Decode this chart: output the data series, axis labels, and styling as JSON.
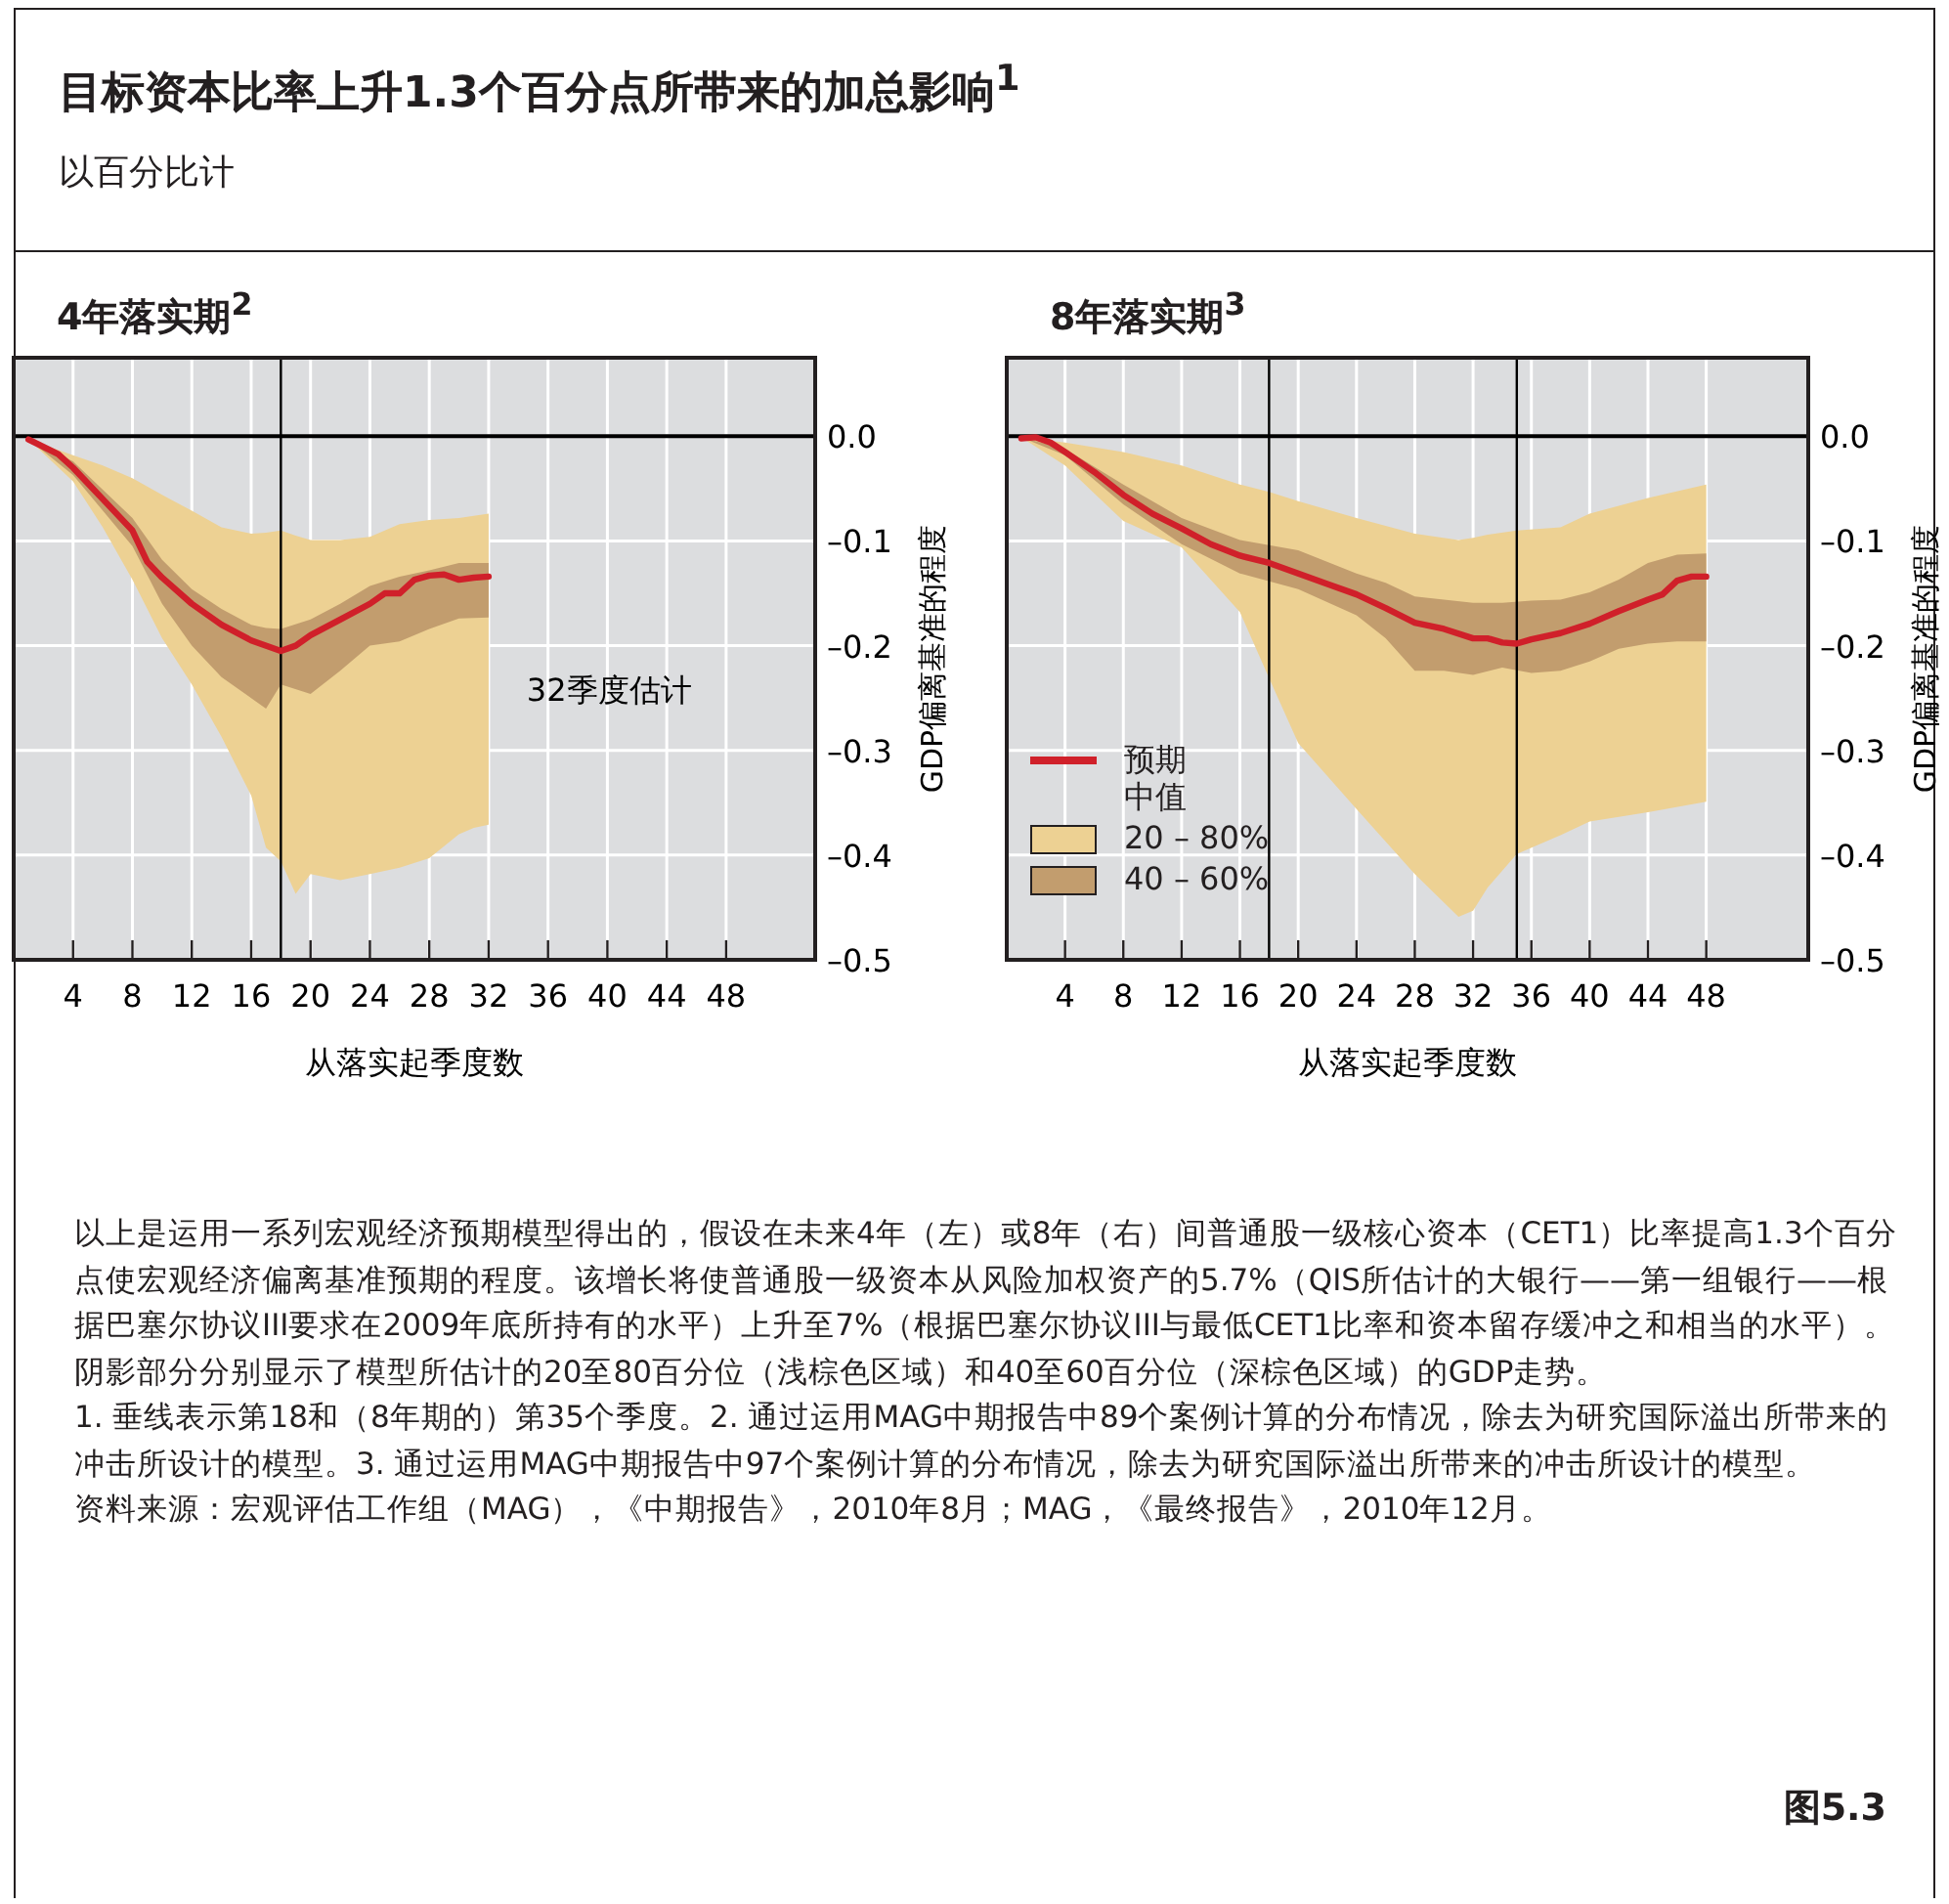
{
  "chart_data": [
    {
      "type": "other",
      "title": "目标资本比率上升1.3个百分点所带来的加总影响$^{1}$",
      "subtitle": "以百分比计",
      "annotations": [
        "以上是运用一系列宏观经济预期模型得出的，假设在未来4年（左）或8年（右）间普通股一级核心资本（CET1）比率提高1.3个百分点使宏观经济偏离基准预期的程度。该增长将使普通股一级资本从风险加权资产的5.7%（QIS所估计的大银行——第一组银行——根据巴塞尔协议III要求在2009年底所持有的水平）上升至7%（根据巴塞尔协议III与最低CET1比率和资本留存缓冲之和相当的水平）。阴影部分分别显示了模型所估计的20至80百分位（浅棕色区域）和40至60百分位（深棕色区域）的GDP走势。",
        "1. 垂线表示第18和（8年期的）第35个季度。2. 通过运用MAG中期报告中89个案例计算的分布情况，除去为研究国际溢出所带来的冲击所设计的模型。3. 通过运用MAG中期报告中97个案例计算的分布情况，除去为研究国际溢出所带来的冲击所设计的模型。",
        "资料来源：宏观评估工作组（MAG），《中期报告》，2010年8月；MAG，《最终报告》，2010年12月。",
        "图5.3"
      ]
    },
    {
      "type": "line",
      "title": "4年落实期$^{2}$",
      "xlabel": "从落实起季度数",
      "ylabel": "GDP偏离基准的程度",
      "xlim": [
        0,
        54
      ],
      "ylim": [
        -0.5,
        0.075
      ],
      "xticks": [
        4,
        8,
        12,
        16,
        20,
        24,
        28,
        32,
        36,
        40,
        44,
        48
      ],
      "yticks": [
        {
          "value": 0,
          "label": "0.0"
        },
        {
          "value": -0.1,
          "label": "–0.1"
        },
        {
          "value": -0.2,
          "label": "–0.2"
        },
        {
          "value": -0.3,
          "label": "–0.3"
        },
        {
          "value": -0.4,
          "label": "–0.4"
        },
        {
          "value": -0.5,
          "label": "–0.5"
        }
      ],
      "grid": true,
      "legend": false,
      "ref_lines": [
        {
          "axis": "y",
          "value": 0,
          "color": "#000000"
        },
        {
          "axis": "x",
          "value": 18,
          "color": "#000000"
        }
      ],
      "annotations": [
        "32季度估计"
      ],
      "series": [
        {
          "type": "line",
          "color": "#edd193",
          "x": [
            1,
            4,
            6,
            8,
            10,
            12,
            14,
            16,
            17,
            18,
            19,
            20,
            22,
            24,
            26,
            28,
            30,
            31,
            32
          ],
          "values": [
            null,
            null,
            null,
            null,
            null,
            null,
            null,
            null,
            null,
            null,
            null,
            null,
            null,
            null,
            null,
            null,
            null,
            null,
            null
          ],
          "upper": [
            -0.003,
            -0.018,
            -0.028,
            -0.04,
            -0.056,
            -0.071,
            -0.087,
            -0.093,
            -0.092,
            -0.09,
            -0.095,
            -0.099,
            -0.099,
            -0.096,
            -0.084,
            -0.08,
            -0.078,
            -0.076,
            -0.074
          ],
          "lower": [
            -0.003,
            -0.043,
            -0.087,
            -0.137,
            -0.193,
            -0.237,
            -0.287,
            -0.343,
            -0.393,
            -0.406,
            -0.437,
            -0.418,
            -0.424,
            -0.418,
            -0.412,
            -0.403,
            -0.38,
            -0.374,
            -0.371
          ]
        },
        {
          "type": "line",
          "color": "#c29d6e",
          "x": [
            1,
            4,
            8,
            10,
            12,
            14,
            16,
            17,
            18,
            20,
            22,
            24,
            26,
            28,
            30,
            32
          ],
          "values": [
            null,
            null,
            null,
            null,
            null,
            null,
            null,
            null,
            null,
            null,
            null,
            null,
            null,
            null,
            null,
            null
          ],
          "upper": [
            -0.003,
            -0.024,
            -0.078,
            -0.118,
            -0.146,
            -0.165,
            -0.18,
            -0.183,
            -0.184,
            -0.175,
            -0.16,
            -0.143,
            -0.134,
            -0.128,
            -0.121,
            -0.121
          ],
          "lower": [
            -0.003,
            -0.037,
            -0.105,
            -0.16,
            -0.2,
            -0.23,
            -0.25,
            -0.26,
            -0.237,
            -0.246,
            -0.224,
            -0.2,
            -0.196,
            -0.184,
            -0.174,
            -0.173
          ]
        },
        {
          "type": "line",
          "color": "#d0202a",
          "x": [
            1,
            2,
            3,
            4,
            6,
            8,
            9,
            10,
            12,
            14,
            16,
            18,
            19,
            20,
            22,
            24,
            25,
            26,
            27,
            28,
            29,
            30,
            31,
            32
          ],
          "values": [
            -0.003,
            -0.01,
            -0.017,
            -0.03,
            -0.06,
            -0.09,
            -0.12,
            -0.135,
            -0.16,
            -0.18,
            -0.195,
            -0.205,
            -0.2,
            -0.19,
            -0.175,
            -0.16,
            -0.15,
            -0.15,
            -0.137,
            -0.133,
            -0.132,
            -0.137,
            -0.135,
            -0.134
          ]
        }
      ]
    },
    {
      "type": "line",
      "title": "8年落实期$^{3}$",
      "xlabel": "从落实起季度数",
      "ylabel": "GDP偏离基准的程度",
      "xlim": [
        0,
        55
      ],
      "ylim": [
        -0.5,
        0.075
      ],
      "xticks": [
        4,
        8,
        12,
        16,
        20,
        24,
        28,
        32,
        36,
        40,
        44,
        48
      ],
      "yticks": [
        {
          "value": 0,
          "label": "0.0"
        },
        {
          "value": -0.1,
          "label": "–0.1"
        },
        {
          "value": -0.2,
          "label": "–0.2"
        },
        {
          "value": -0.3,
          "label": "–0.3"
        },
        {
          "value": -0.4,
          "label": "–0.4"
        },
        {
          "value": -0.5,
          "label": "–0.5"
        }
      ],
      "grid": true,
      "legend": "bottom left",
      "ref_lines": [
        {
          "axis": "y",
          "value": 0,
          "color": "#000000"
        },
        {
          "axis": "x",
          "value": 18,
          "color": "#000000"
        },
        {
          "axis": "x",
          "value": 35,
          "color": "#000000"
        }
      ],
      "series": [
        {
          "type": "line",
          "name": "预期中值",
          "color": "#d0202a",
          "x": [
            1,
            2,
            3,
            4,
            6,
            8,
            10,
            12,
            14,
            16,
            18,
            20,
            22,
            24,
            26,
            28,
            30,
            32,
            33,
            34,
            35,
            36,
            38,
            40,
            42,
            44,
            45,
            46,
            47,
            48
          ],
          "values": [
            -0.002,
            -0.001,
            -0.006,
            -0.015,
            -0.034,
            -0.056,
            -0.074,
            -0.088,
            -0.103,
            -0.114,
            -0.121,
            -0.131,
            -0.141,
            -0.151,
            -0.164,
            -0.178,
            -0.184,
            -0.193,
            -0.193,
            -0.197,
            -0.198,
            -0.194,
            -0.188,
            -0.179,
            -0.167,
            -0.156,
            -0.151,
            -0.138,
            -0.134,
            -0.134
          ]
        },
        {
          "type": "line",
          "name": "20 – 80%",
          "color": "#edd193",
          "x": [
            1,
            4,
            8,
            12,
            16,
            18,
            20,
            24,
            28,
            31,
            32,
            33,
            35,
            38,
            40,
            44,
            48
          ],
          "values": [
            null,
            null,
            null,
            null,
            null,
            null,
            null,
            null,
            null,
            null,
            null,
            null,
            null,
            null,
            null,
            null,
            null
          ],
          "upper": [
            -0.001,
            -0.006,
            -0.015,
            -0.028,
            -0.046,
            -0.053,
            -0.062,
            -0.078,
            -0.093,
            -0.099,
            -0.097,
            -0.094,
            -0.09,
            -0.087,
            -0.074,
            -0.059,
            -0.046
          ],
          "lower": [
            -0.001,
            -0.028,
            -0.081,
            -0.106,
            -0.168,
            -0.231,
            -0.293,
            -0.356,
            -0.418,
            -0.459,
            -0.453,
            -0.431,
            -0.399,
            -0.381,
            -0.368,
            -0.359,
            -0.349
          ]
        },
        {
          "type": "line",
          "name": "40 – 60%",
          "color": "#c29d6e",
          "x": [
            1,
            4,
            8,
            12,
            16,
            20,
            24,
            26,
            28,
            30,
            32,
            34,
            36,
            38,
            40,
            42,
            44,
            46,
            48
          ],
          "values": [
            null,
            null,
            null,
            null,
            null,
            null,
            null,
            null,
            null,
            null,
            null,
            null,
            null,
            null,
            null,
            null,
            null,
            null,
            null
          ],
          "upper": [
            -0.001,
            -0.012,
            -0.046,
            -0.078,
            -0.099,
            -0.109,
            -0.131,
            -0.14,
            -0.153,
            -0.156,
            -0.159,
            -0.159,
            -0.157,
            -0.156,
            -0.149,
            -0.137,
            -0.121,
            -0.113,
            -0.112
          ],
          "lower": [
            -0.001,
            -0.018,
            -0.065,
            -0.103,
            -0.131,
            -0.146,
            -0.171,
            -0.193,
            -0.224,
            -0.224,
            -0.228,
            -0.221,
            -0.226,
            -0.224,
            -0.215,
            -0.203,
            -0.198,
            -0.196,
            -0.196
          ]
        }
      ]
    }
  ]
}
